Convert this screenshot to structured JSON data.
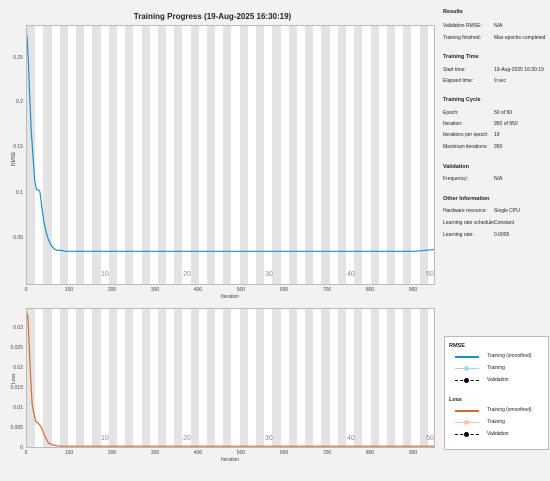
{
  "window": {
    "title": "Training Progress (19-Aug-2025 16:30:19)"
  },
  "colors": {
    "rmse_line": "#1f8fc8",
    "loss_line": "#d96b2b",
    "stripe": "#e3e3e3",
    "plot_bg": "#ffffff",
    "page_bg": "#f2f2f2"
  },
  "rmse_plot": {
    "ylabel": "RMSE",
    "xlabel": "Iteration",
    "yticks": [
      "0.25",
      "0.2",
      "0.15",
      "0.1",
      "0.05"
    ],
    "xticks": [
      "0",
      "100",
      "200",
      "300",
      "400",
      "500",
      "600",
      "700",
      "800",
      "900"
    ],
    "epoch_labels": [
      "10",
      "20",
      "30",
      "40",
      "50"
    ]
  },
  "loss_plot": {
    "ylabel": "Loss",
    "xlabel": "Iteration",
    "yticks": [
      "0.03",
      "0.025",
      "0.02",
      "0.015",
      "0.01",
      "0.005",
      "0"
    ],
    "xticks": [
      "0",
      "100",
      "200",
      "300",
      "400",
      "500",
      "600",
      "700",
      "800",
      "900"
    ],
    "epoch_labels": [
      "10",
      "20",
      "30",
      "40",
      "50"
    ]
  },
  "chart_data": [
    {
      "type": "line",
      "title": "Training Progress (19-Aug-2025 16:30:19)",
      "xlabel": "Iteration",
      "ylabel": "RMSE",
      "xlim": [
        0,
        950
      ],
      "ylim": [
        0,
        0.27
      ],
      "series": [
        {
          "name": "Training (smoothed)",
          "x": [
            0,
            3,
            6,
            10,
            14,
            18,
            22,
            26,
            30,
            35,
            40,
            45,
            50,
            55,
            60,
            65,
            70,
            80,
            90,
            100,
            150,
            200,
            300,
            400,
            500,
            600,
            700,
            800,
            900,
            950
          ],
          "y": [
            0.26,
            0.235,
            0.2,
            0.16,
            0.135,
            0.11,
            0.1,
            0.1,
            0.098,
            0.08,
            0.065,
            0.055,
            0.048,
            0.043,
            0.04,
            0.038,
            0.037,
            0.037,
            0.036,
            0.036,
            0.036,
            0.036,
            0.036,
            0.036,
            0.036,
            0.036,
            0.036,
            0.036,
            0.036,
            0.038
          ]
        }
      ]
    },
    {
      "type": "line",
      "xlabel": "Iteration",
      "ylabel": "Loss",
      "xlim": [
        0,
        950
      ],
      "ylim": [
        0,
        0.035
      ],
      "series": [
        {
          "name": "Training (smoothed)",
          "x": [
            0,
            2,
            5,
            8,
            12,
            16,
            20,
            25,
            30,
            35,
            40,
            45,
            50,
            60,
            70,
            80,
            100,
            200,
            300,
            400,
            500,
            600,
            700,
            800,
            900,
            950
          ],
          "y": [
            0.034,
            0.033,
            0.026,
            0.019,
            0.011,
            0.009,
            0.007,
            0.0065,
            0.006,
            0.005,
            0.0035,
            0.0025,
            0.0015,
            0.001,
            0.0008,
            0.0007,
            0.0007,
            0.0007,
            0.0007,
            0.0007,
            0.0007,
            0.0007,
            0.0007,
            0.0007,
            0.0007,
            0.0007
          ]
        }
      ]
    }
  ],
  "results": {
    "section": "Results",
    "rows": [
      {
        "k": "Validation RMSE:",
        "v": "N/A"
      },
      {
        "k": "Training finished:",
        "v": "Max epochs completed"
      }
    ]
  },
  "time": {
    "section": "Training Time",
    "rows": [
      {
        "k": "Start time:",
        "v": "19-Aug-2025 16:30:19"
      },
      {
        "k": "Elapsed time:",
        "v": "9 sec"
      }
    ]
  },
  "cycle": {
    "section": "Training Cycle",
    "rows": [
      {
        "k": "Epoch:",
        "v": "50 of 50"
      },
      {
        "k": "Iteration:",
        "v": "950 of 950"
      },
      {
        "k": "Iterations per epoch:",
        "v": "19"
      },
      {
        "k": "Maximum iterations:",
        "v": "950"
      }
    ]
  },
  "validation": {
    "section": "Validation",
    "rows": [
      {
        "k": "Frequency:",
        "v": "N/A"
      }
    ]
  },
  "other": {
    "section": "Other Information",
    "rows": [
      {
        "k": "Hardware resource:",
        "v": "Single CPU"
      },
      {
        "k": "Learning rate schedule:",
        "v": "Constant"
      },
      {
        "k": "Learning rate:",
        "v": "0.0005"
      }
    ]
  },
  "legend": {
    "rmse_title": "RMSE",
    "loss_title": "Loss",
    "training_smoothed": "Training (smoothed)",
    "training": "Training",
    "validation": "Validation"
  }
}
